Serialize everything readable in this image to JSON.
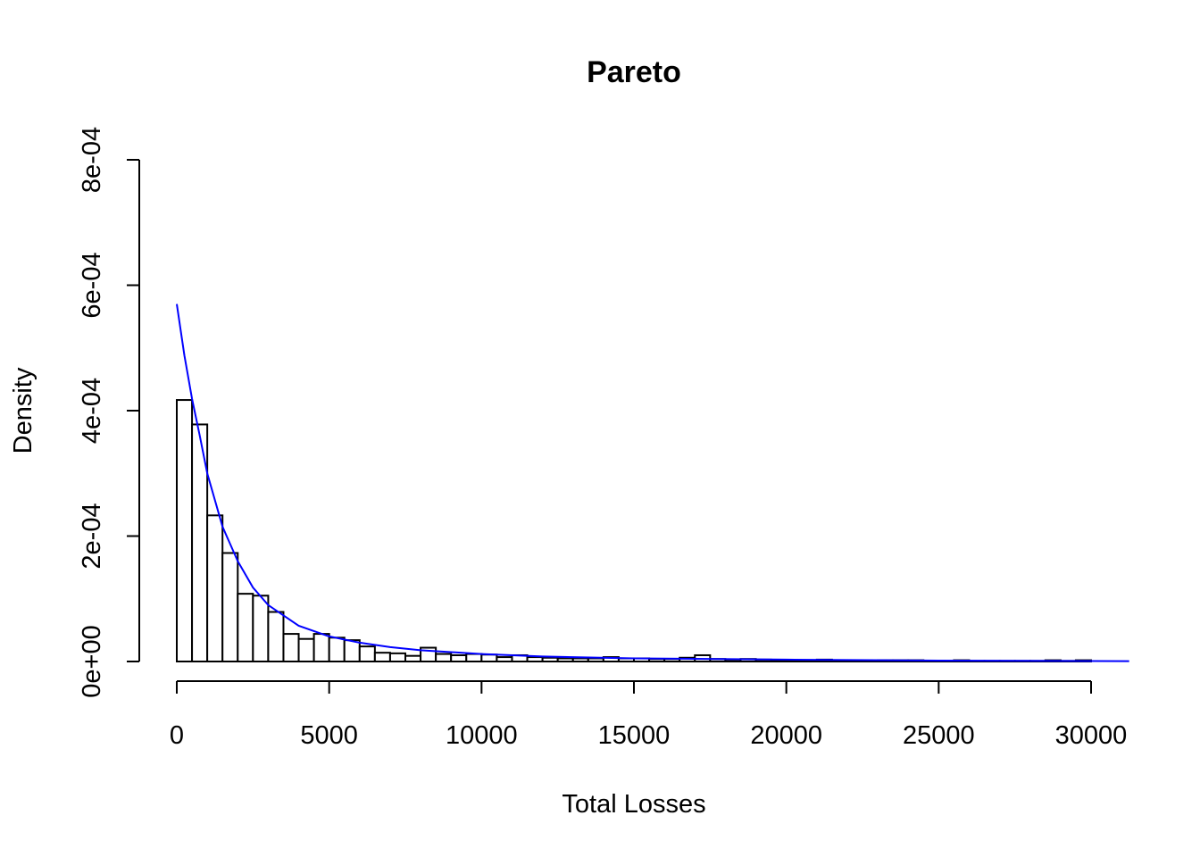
{
  "chart_data": {
    "type": "bar",
    "subtype": "histogram",
    "title": "Pareto",
    "xlabel": "Total Losses",
    "ylabel": "Density",
    "xlim": [
      0,
      30000
    ],
    "ylim": [
      0,
      0.0008
    ],
    "x_ticks": [
      0,
      5000,
      10000,
      15000,
      20000,
      25000,
      30000
    ],
    "x_tick_labels": [
      "0",
      "5000",
      "10000",
      "15000",
      "20000",
      "25000",
      "30000"
    ],
    "y_ticks": [
      0,
      0.0002,
      0.0004,
      0.0006,
      0.0008
    ],
    "y_tick_labels": [
      "0e+00",
      "2e-04",
      "4e-04",
      "6e-04",
      "8e-04"
    ],
    "grid": false,
    "bin_width": 500,
    "bin_start": 0,
    "values": [
      0.000417,
      0.000378,
      0.000233,
      0.000173,
      0.000108,
      0.000105,
      7.9e-05,
      4.4e-05,
      3.6e-05,
      4.4e-05,
      3.8e-05,
      3.4e-05,
      2.4e-05,
      1.4e-05,
      1.3e-05,
      9e-06,
      2.2e-05,
      1.2e-05,
      1e-05,
      1.2e-05,
      1.1e-05,
      7e-06,
      1e-05,
      7e-06,
      6e-06,
      5e-06,
      5e-06,
      5e-06,
      7e-06,
      5e-06,
      5e-06,
      4e-06,
      4e-06,
      6e-06,
      1e-05,
      4e-06,
      3e-06,
      4e-06,
      3e-06,
      2e-06,
      2e-06,
      1e-06,
      3e-06,
      1e-06,
      2e-06,
      1e-06,
      2e-06,
      2e-06,
      2e-06,
      1e-06,
      1e-06,
      2e-06,
      1e-06,
      1e-06,
      1e-06,
      1e-06,
      1e-06,
      2e-06,
      1e-06,
      2e-06
    ],
    "density_curve": {
      "color": "#0000ff",
      "x_max": 31250,
      "x": [
        0,
        250,
        500,
        750,
        1000,
        1500,
        2000,
        2500,
        3000,
        4000,
        5000,
        6000,
        7000,
        8000,
        10000,
        12000,
        15000,
        20000,
        25000,
        31250
      ],
      "y": [
        0.00057,
        0.000488,
        0.000419,
        0.000361,
        0.0003,
        0.000215,
        0.00016,
        0.000118,
        9e-05,
        5.7e-05,
        4e-05,
        3e-05,
        2.3e-05,
        1.8e-05,
        1.2e-05,
        8e-06,
        5e-06,
        3e-06,
        1.5e-06,
        5e-07
      ]
    }
  }
}
